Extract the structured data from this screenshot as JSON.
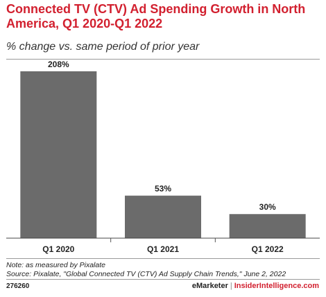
{
  "chart_data": {
    "type": "bar",
    "title": "Connected TV (CTV) Ad Spending Growth in North America, Q1 2020-Q1 2022",
    "subtitle": "% change vs. same period of prior year",
    "categories": [
      "Q1 2020",
      "Q1 2021",
      "Q1 2022"
    ],
    "values": [
      208,
      53,
      30
    ],
    "value_labels": [
      "208%",
      "53%",
      "30%"
    ],
    "ylim": [
      0,
      208
    ],
    "grid": false,
    "bar_color": "#6b6b6b"
  },
  "notes": {
    "note": "Note: as measured by Pixalate",
    "source": "Source: Pixalate, \"Global Connected TV (CTV) Ad Supply Chain Trends,\" June 2, 2022"
  },
  "footer": {
    "chart_id": "276260",
    "brand": "eMarketer",
    "separator": "|",
    "site": "InsiderIntelligence.com"
  },
  "colors": {
    "accent": "#d2202f",
    "bar": "#6b6b6b"
  }
}
